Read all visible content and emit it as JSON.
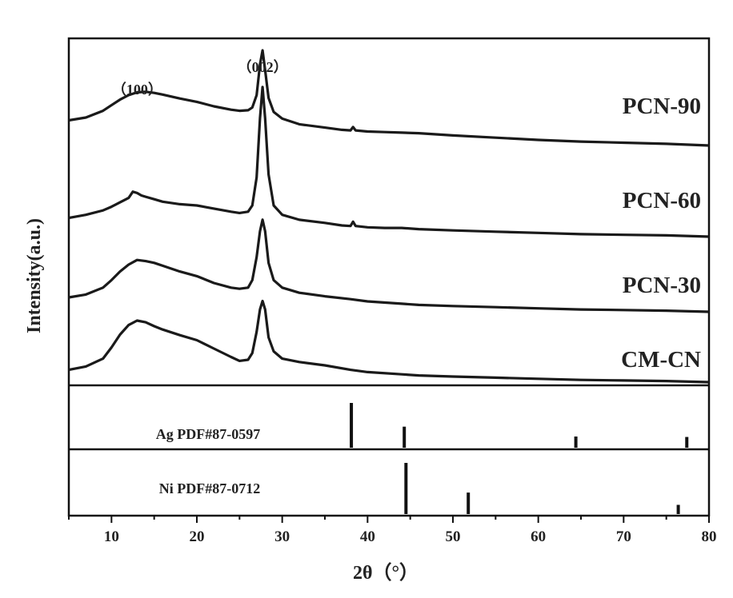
{
  "chart_data": {
    "type": "line",
    "xlabel": "2θ（°）",
    "ylabel": "Intensity(a.u.)",
    "xlim": [
      5,
      80
    ],
    "xticks": [
      10,
      20,
      30,
      40,
      50,
      60,
      70,
      80
    ],
    "grid": false,
    "series": [
      {
        "name": "PCN-90",
        "x": [
          5,
          7,
          9,
          10,
          11,
          12,
          13,
          14,
          15,
          16,
          18,
          20,
          22,
          24,
          25,
          26,
          26.5,
          27,
          27.4,
          27.7,
          28,
          28.4,
          29,
          30,
          32,
          35,
          37,
          38,
          38.3,
          38.6,
          40,
          42,
          44,
          46,
          50,
          55,
          60,
          65,
          70,
          75,
          80
        ],
        "y": [
          0.45,
          0.5,
          0.62,
          0.72,
          0.82,
          0.9,
          0.95,
          0.96,
          0.94,
          0.91,
          0.84,
          0.78,
          0.7,
          0.64,
          0.62,
          0.63,
          0.68,
          0.9,
          1.45,
          1.7,
          1.35,
          0.85,
          0.6,
          0.48,
          0.38,
          0.32,
          0.28,
          0.27,
          0.33,
          0.27,
          0.25,
          0.24,
          0.23,
          0.22,
          0.18,
          0.14,
          0.1,
          0.07,
          0.05,
          0.03,
          0.0
        ]
      },
      {
        "name": "PCN-60",
        "x": [
          5,
          7,
          9,
          10,
          11,
          12,
          12.5,
          13,
          13.5,
          14,
          15,
          16,
          18,
          20,
          22,
          24,
          25,
          26,
          26.5,
          27,
          27.4,
          27.7,
          28,
          28.4,
          29,
          30,
          32,
          35,
          37,
          38,
          38.3,
          38.6,
          40,
          42,
          44,
          46,
          50,
          55,
          60,
          65,
          70,
          75,
          80
        ],
        "y": [
          0.3,
          0.35,
          0.42,
          0.48,
          0.55,
          0.62,
          0.72,
          0.7,
          0.66,
          0.64,
          0.6,
          0.56,
          0.52,
          0.5,
          0.45,
          0.4,
          0.38,
          0.4,
          0.5,
          0.95,
          1.9,
          2.4,
          1.9,
          1.0,
          0.5,
          0.35,
          0.27,
          0.22,
          0.18,
          0.17,
          0.24,
          0.17,
          0.15,
          0.14,
          0.14,
          0.12,
          0.1,
          0.08,
          0.06,
          0.04,
          0.03,
          0.02,
          0.0
        ]
      },
      {
        "name": "PCN-30",
        "x": [
          5,
          7,
          9,
          10,
          11,
          12,
          13,
          14,
          15,
          16,
          18,
          20,
          22,
          24,
          25,
          26,
          26.5,
          27,
          27.4,
          27.7,
          28,
          28.4,
          29,
          30,
          32,
          35,
          38,
          40,
          44,
          46,
          50,
          55,
          60,
          65,
          70,
          75,
          80
        ],
        "y": [
          0.25,
          0.3,
          0.42,
          0.55,
          0.7,
          0.82,
          0.9,
          0.88,
          0.85,
          0.8,
          0.7,
          0.62,
          0.5,
          0.42,
          0.4,
          0.42,
          0.55,
          0.95,
          1.4,
          1.6,
          1.4,
          0.85,
          0.55,
          0.42,
          0.33,
          0.27,
          0.22,
          0.18,
          0.14,
          0.12,
          0.1,
          0.08,
          0.06,
          0.04,
          0.03,
          0.02,
          0.0
        ]
      },
      {
        "name": "CM-CN",
        "x": [
          5,
          7,
          9,
          10,
          11,
          12,
          13,
          14,
          15,
          16,
          18,
          20,
          22,
          24,
          25,
          26,
          26.5,
          27,
          27.4,
          27.7,
          28,
          28.4,
          29,
          30,
          32,
          35,
          38,
          40,
          44,
          46,
          50,
          55,
          60,
          65,
          70,
          75,
          80
        ],
        "y": [
          0.22,
          0.28,
          0.42,
          0.62,
          0.85,
          1.02,
          1.1,
          1.07,
          1.0,
          0.94,
          0.84,
          0.75,
          0.6,
          0.45,
          0.38,
          0.4,
          0.52,
          0.9,
          1.3,
          1.45,
          1.3,
          0.8,
          0.55,
          0.42,
          0.36,
          0.3,
          0.22,
          0.18,
          0.14,
          0.12,
          0.1,
          0.08,
          0.06,
          0.04,
          0.03,
          0.02,
          0.0
        ]
      }
    ],
    "peak_annotations": [
      {
        "label": "（100）",
        "x": 13
      },
      {
        "label": "（002）",
        "x": 27.7
      }
    ],
    "references": [
      {
        "label": "Ag PDF#87-0597",
        "peaks": [
          38.1,
          44.3,
          64.4,
          77.4
        ],
        "intensities": [
          100,
          47,
          25,
          24
        ]
      },
      {
        "label": "Ni PDF#87-0712",
        "peaks": [
          44.5,
          51.8,
          76.4
        ],
        "intensities": [
          100,
          42,
          18
        ]
      }
    ]
  }
}
